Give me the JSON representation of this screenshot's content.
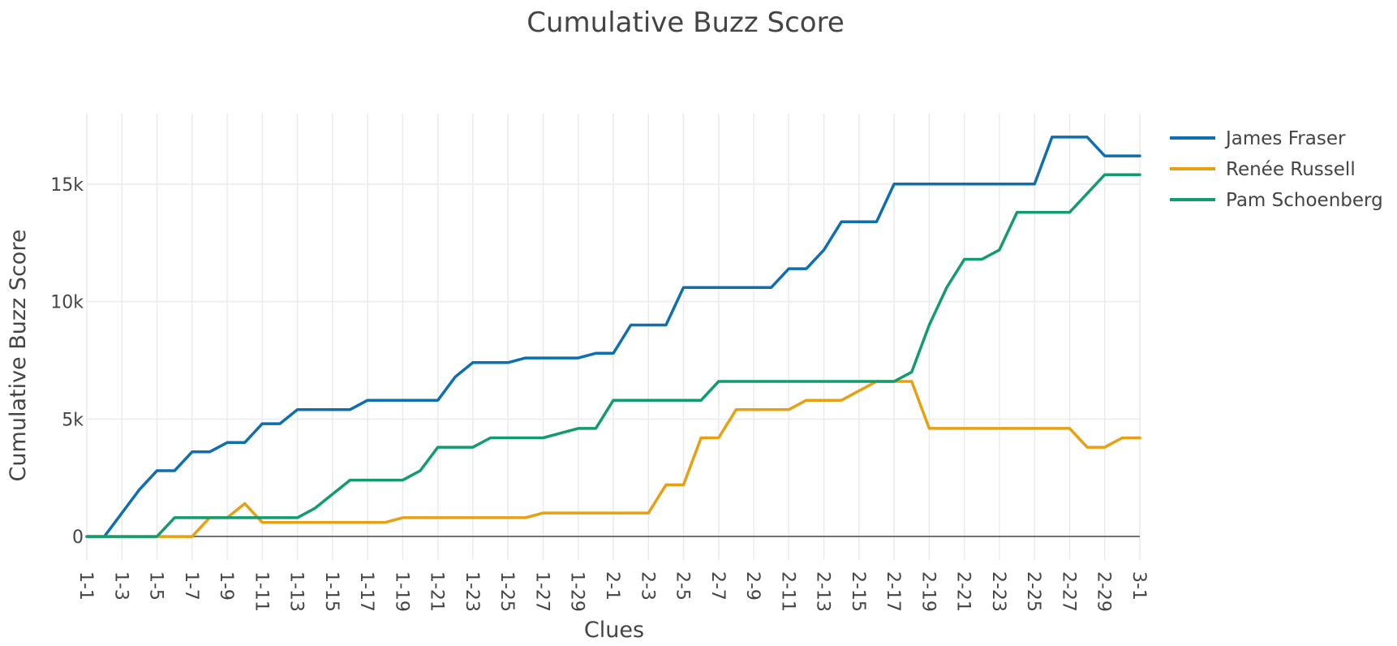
{
  "chart_data": {
    "type": "line",
    "title": "Cumulative Buzz Score",
    "xlabel": "Clues",
    "ylabel": "Cumulative Buzz Score",
    "categories": [
      "1-1",
      "1-2",
      "1-3",
      "1-4",
      "1-5",
      "1-6",
      "1-7",
      "1-8",
      "1-9",
      "1-10",
      "1-11",
      "1-12",
      "1-13",
      "1-14",
      "1-15",
      "1-16",
      "1-17",
      "1-18",
      "1-19",
      "1-20",
      "1-21",
      "1-22",
      "1-23",
      "1-24",
      "1-25",
      "1-26",
      "1-27",
      "1-28",
      "1-29",
      "1-30",
      "2-1",
      "2-2",
      "2-3",
      "2-4",
      "2-5",
      "2-6",
      "2-7",
      "2-8",
      "2-9",
      "2-10",
      "2-11",
      "2-12",
      "2-13",
      "2-14",
      "2-15",
      "2-16",
      "2-17",
      "2-18",
      "2-19",
      "2-20",
      "2-21",
      "2-22",
      "2-23",
      "2-24",
      "2-25",
      "2-26",
      "2-27",
      "2-28",
      "2-29",
      "2-30",
      "3-1"
    ],
    "tick_labels": [
      "1-1",
      "1-3",
      "1-5",
      "1-7",
      "1-9",
      "1-11",
      "1-13",
      "1-15",
      "1-17",
      "1-19",
      "1-21",
      "1-23",
      "1-25",
      "1-27",
      "1-29",
      "2-1",
      "2-3",
      "2-5",
      "2-7",
      "2-9",
      "2-11",
      "2-13",
      "2-15",
      "2-17",
      "2-19",
      "2-21",
      "2-23",
      "2-25",
      "2-27",
      "2-29",
      "3-1"
    ],
    "ylim": [
      -1000,
      18000
    ],
    "yticks": [
      0,
      5000,
      10000,
      15000
    ],
    "ytick_labels": [
      "0",
      "5k",
      "10k",
      "15k"
    ],
    "grid": true,
    "legend_position": "top-right",
    "series": [
      {
        "name": "James Fraser",
        "color": "#0d6fb0",
        "values": [
          0,
          0,
          1000,
          2000,
          2800,
          2800,
          3600,
          3600,
          4000,
          4000,
          4800,
          4800,
          5400,
          5400,
          5400,
          5400,
          5800,
          5800,
          5800,
          5800,
          5800,
          6800,
          7400,
          7400,
          7400,
          7600,
          7600,
          7600,
          7600,
          7800,
          7800,
          9000,
          9000,
          9000,
          10600,
          10600,
          10600,
          10600,
          10600,
          10600,
          11400,
          11400,
          12200,
          13400,
          13400,
          13400,
          15000,
          15000,
          15000,
          15000,
          15000,
          15000,
          15000,
          15000,
          15000,
          17000,
          17000,
          17000,
          16200,
          16200,
          16200
        ]
      },
      {
        "name": "Renée Russell",
        "color": "#e6a012",
        "values": [
          0,
          0,
          0,
          0,
          0,
          0,
          0,
          800,
          800,
          1400,
          600,
          600,
          600,
          600,
          600,
          600,
          600,
          600,
          800,
          800,
          800,
          800,
          800,
          800,
          800,
          800,
          1000,
          1000,
          1000,
          1000,
          1000,
          1000,
          1000,
          2200,
          2200,
          4200,
          4200,
          5400,
          5400,
          5400,
          5400,
          5800,
          5800,
          5800,
          6200,
          6600,
          6600,
          6600,
          4600,
          4600,
          4600,
          4600,
          4600,
          4600,
          4600,
          4600,
          4600,
          3800,
          3800,
          4200,
          4200
        ]
      },
      {
        "name": "Pam Schoenberg",
        "color": "#129b6e",
        "values": [
          0,
          0,
          0,
          0,
          0,
          800,
          800,
          800,
          800,
          800,
          800,
          800,
          800,
          1200,
          1800,
          2400,
          2400,
          2400,
          2400,
          2800,
          3800,
          3800,
          3800,
          4200,
          4200,
          4200,
          4200,
          4400,
          4600,
          4600,
          5800,
          5800,
          5800,
          5800,
          5800,
          5800,
          6600,
          6600,
          6600,
          6600,
          6600,
          6600,
          6600,
          6600,
          6600,
          6600,
          6600,
          7000,
          9000,
          10600,
          11800,
          11800,
          12200,
          13800,
          13800,
          13800,
          13800,
          14600,
          15400,
          15400,
          15400
        ]
      }
    ]
  }
}
